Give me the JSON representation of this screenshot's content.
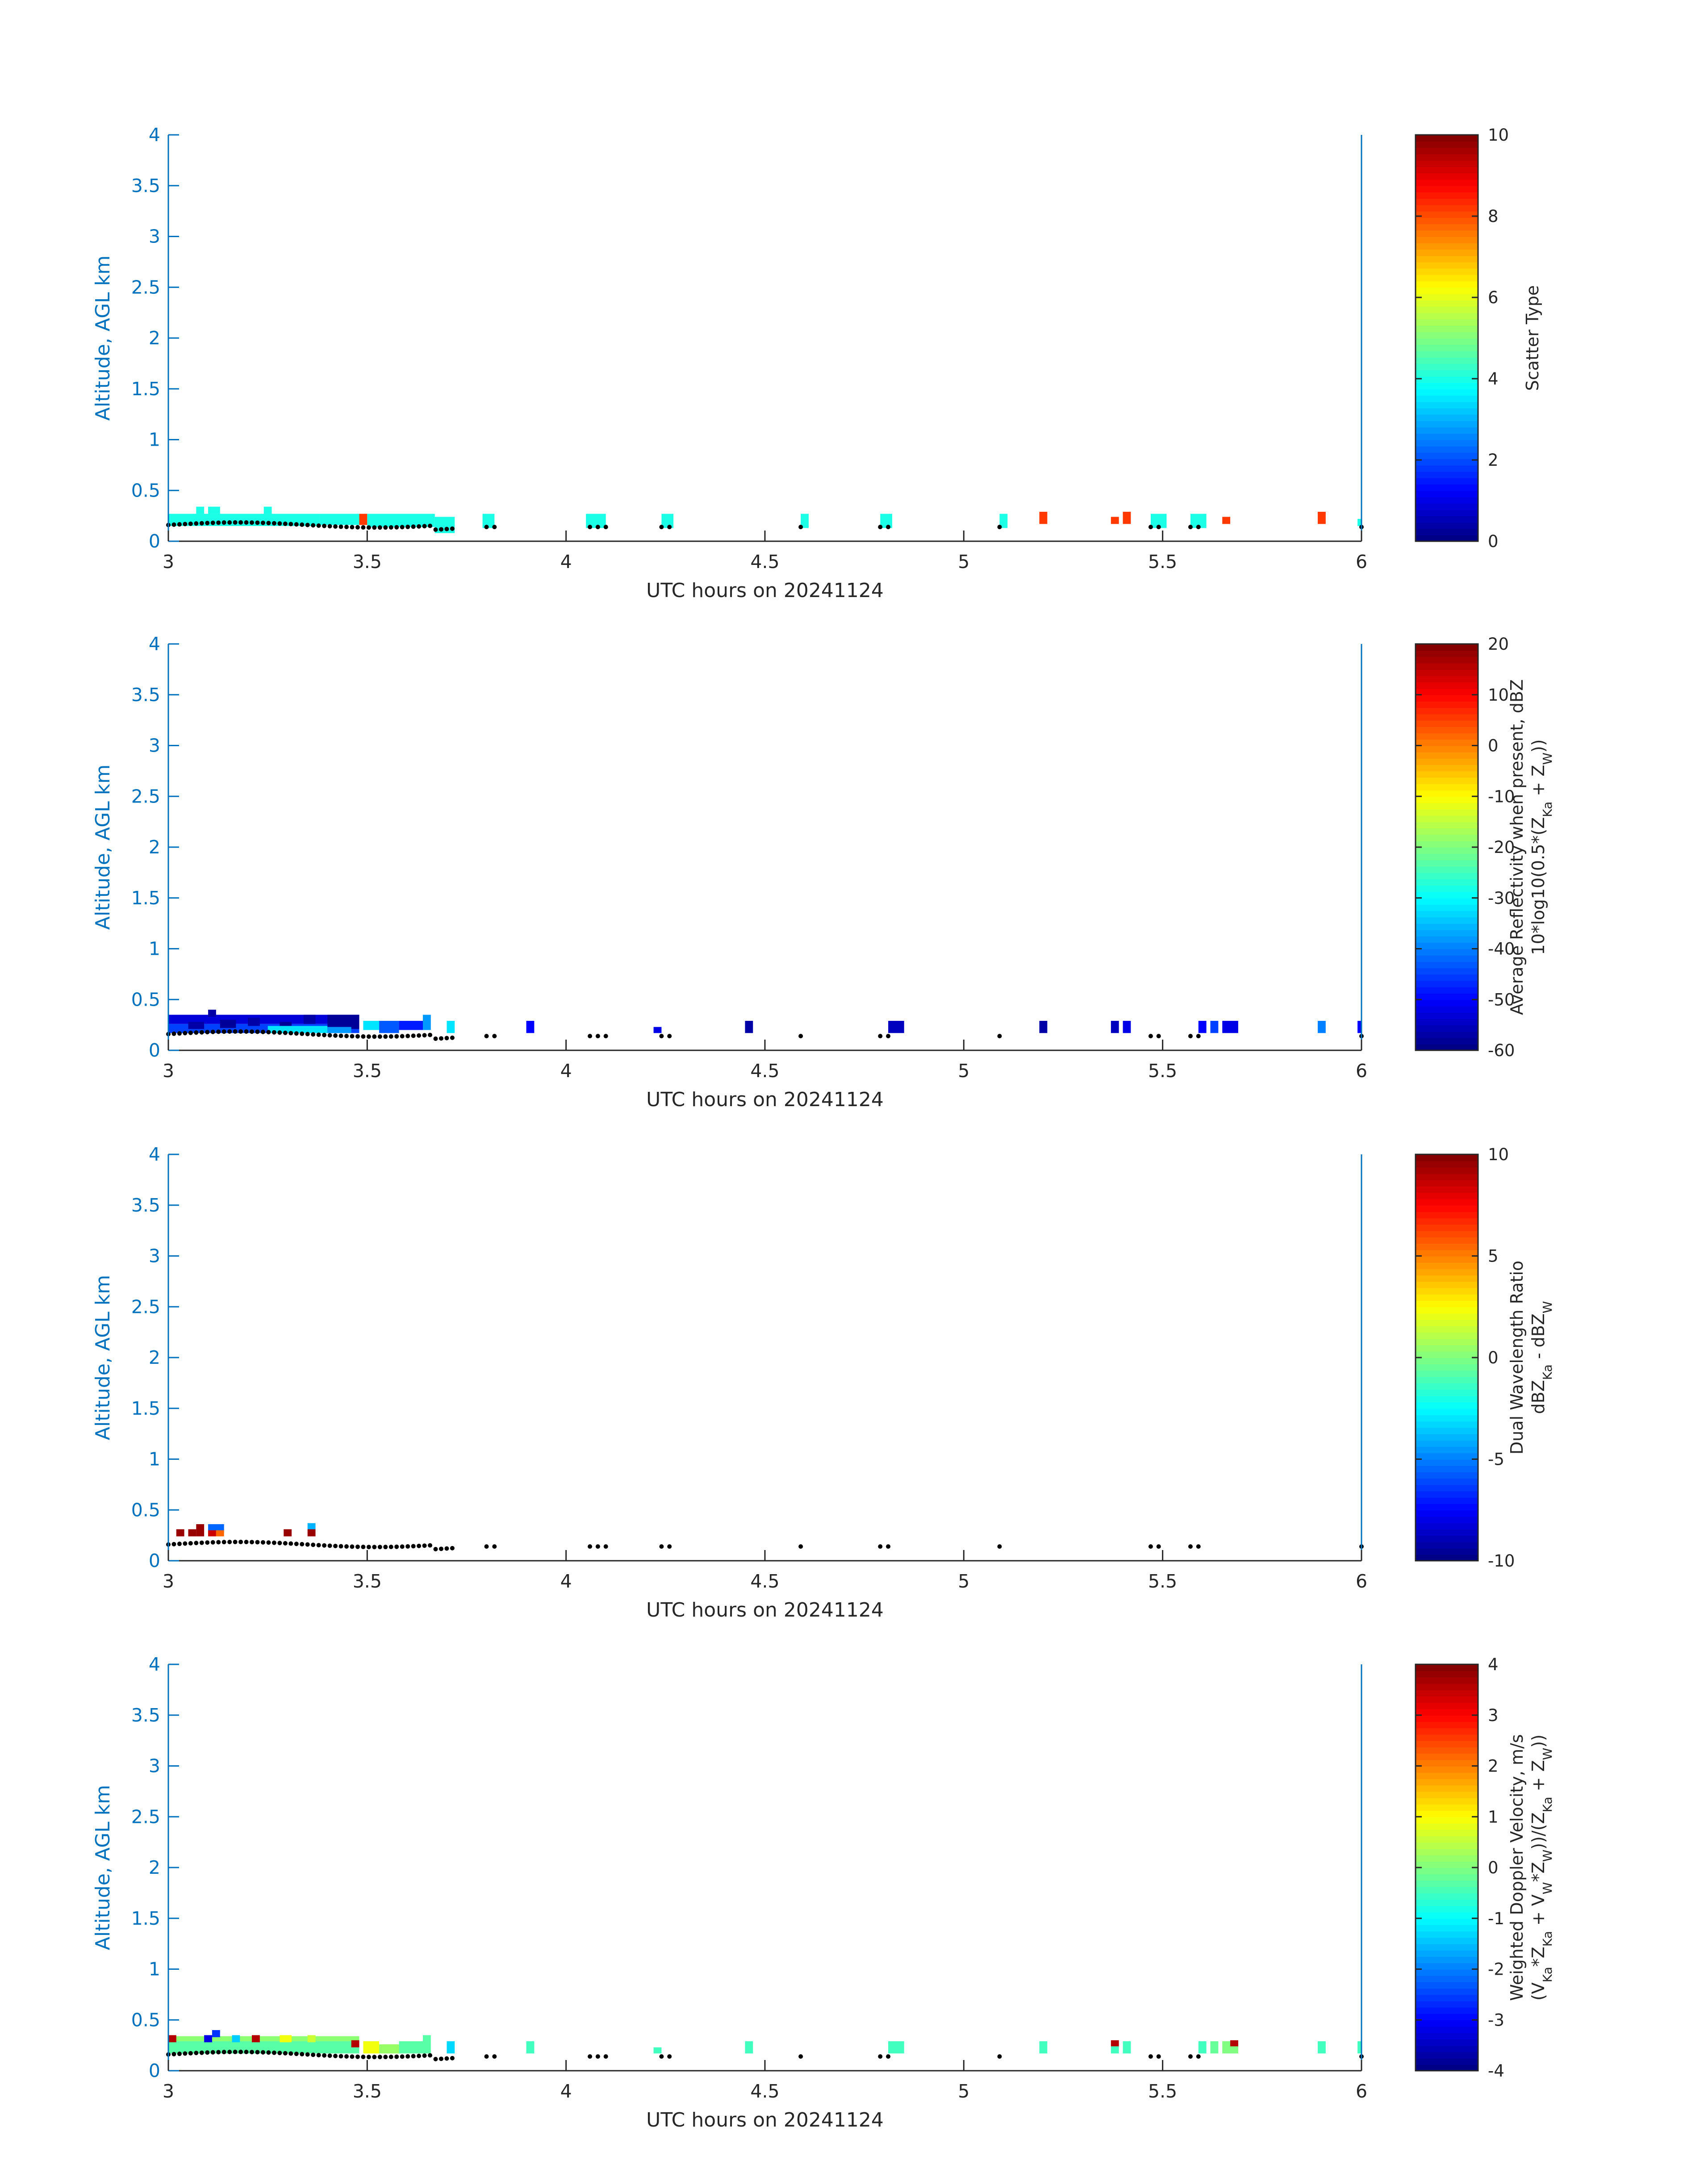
{
  "chart_data": [
    {
      "type": "heatmap",
      "xlabel": "UTC hours on 20241124",
      "ylabel": "Altitude, AGL km",
      "xlim": [
        3,
        6
      ],
      "ylim": [
        0,
        4
      ],
      "xticks": [
        "3",
        "3.5",
        "4",
        "4.5",
        "5",
        "5.5",
        "6"
      ],
      "yticks": [
        "0",
        "0.5",
        "1",
        "1.5",
        "2",
        "2.5",
        "3",
        "3.5",
        "4"
      ],
      "colorbar": {
        "label_lines": [
          "Scatter Type"
        ],
        "range": [
          0,
          10
        ],
        "ticks": [
          "0",
          "2",
          "4",
          "6",
          "8",
          "10"
        ]
      },
      "cells": [
        {
          "x0": 3.0,
          "x1": 3.38,
          "y0": 0.15,
          "y1": 0.27,
          "v": 4
        },
        {
          "x0": 3.38,
          "x1": 3.48,
          "y0": 0.16,
          "y1": 0.27,
          "v": 4
        },
        {
          "x0": 3.07,
          "x1": 3.09,
          "y0": 0.27,
          "y1": 0.34,
          "v": 4
        },
        {
          "x0": 3.1,
          "x1": 3.13,
          "y0": 0.27,
          "y1": 0.34,
          "v": 4
        },
        {
          "x0": 3.24,
          "x1": 3.26,
          "y0": 0.27,
          "y1": 0.34,
          "v": 4
        },
        {
          "x0": 3.48,
          "x1": 3.5,
          "y0": 0.16,
          "y1": 0.27,
          "v": 8.2
        },
        {
          "x0": 3.5,
          "x1": 3.67,
          "y0": 0.14,
          "y1": 0.27,
          "v": 4
        },
        {
          "x0": 3.67,
          "x1": 3.72,
          "y0": 0.08,
          "y1": 0.24,
          "v": 4
        },
        {
          "x0": 3.79,
          "x1": 3.82,
          "y0": 0.13,
          "y1": 0.27,
          "v": 4
        },
        {
          "x0": 4.05,
          "x1": 4.1,
          "y0": 0.13,
          "y1": 0.27,
          "v": 4
        },
        {
          "x0": 4.24,
          "x1": 4.27,
          "y0": 0.13,
          "y1": 0.27,
          "v": 4
        },
        {
          "x0": 4.59,
          "x1": 4.61,
          "y0": 0.13,
          "y1": 0.27,
          "v": 4
        },
        {
          "x0": 4.79,
          "x1": 4.82,
          "y0": 0.13,
          "y1": 0.27,
          "v": 4
        },
        {
          "x0": 5.09,
          "x1": 5.11,
          "y0": 0.13,
          "y1": 0.27,
          "v": 4
        },
        {
          "x0": 5.19,
          "x1": 5.21,
          "y0": 0.17,
          "y1": 0.29,
          "v": 8.2
        },
        {
          "x0": 5.37,
          "x1": 5.39,
          "y0": 0.17,
          "y1": 0.24,
          "v": 8.2
        },
        {
          "x0": 5.4,
          "x1": 5.42,
          "y0": 0.17,
          "y1": 0.29,
          "v": 8.2
        },
        {
          "x0": 5.47,
          "x1": 5.51,
          "y0": 0.13,
          "y1": 0.27,
          "v": 4
        },
        {
          "x0": 5.57,
          "x1": 5.61,
          "y0": 0.13,
          "y1": 0.27,
          "v": 4
        },
        {
          "x0": 5.65,
          "x1": 5.67,
          "y0": 0.17,
          "y1": 0.24,
          "v": 8.2
        },
        {
          "x0": 5.89,
          "x1": 5.91,
          "y0": 0.17,
          "y1": 0.29,
          "v": 8.2
        },
        {
          "x0": 5.99,
          "x1": 6.0,
          "y0": 0.15,
          "y1": 0.22,
          "v": 4
        }
      ]
    },
    {
      "type": "heatmap",
      "xlabel": "UTC hours on 20241124",
      "ylabel": "Altitude, AGL km",
      "xlim": [
        3,
        6
      ],
      "ylim": [
        0,
        4
      ],
      "xticks": [
        "3",
        "3.5",
        "4",
        "4.5",
        "5",
        "5.5",
        "6"
      ],
      "yticks": [
        "0",
        "0.5",
        "1",
        "1.5",
        "2",
        "2.5",
        "3",
        "3.5",
        "4"
      ],
      "colorbar": {
        "label_lines": [
          "Average Reflectivity when present, dBZ",
          "10*log10(0.5*(Z_Ka + Z_W))"
        ],
        "range": [
          -60,
          20
        ],
        "ticks": [
          "-60",
          "-50",
          "-40",
          "-30",
          "-20",
          "-10",
          "0",
          "10",
          "20"
        ]
      },
      "cells": [
        {
          "x0": 3.0,
          "x1": 3.48,
          "y0": 0.17,
          "y1": 0.26,
          "v": -45
        },
        {
          "x0": 3.0,
          "x1": 3.48,
          "y0": 0.26,
          "y1": 0.35,
          "v": -53
        },
        {
          "x0": 3.1,
          "x1": 3.12,
          "y0": 0.33,
          "y1": 0.4,
          "v": -57
        },
        {
          "x0": 3.05,
          "x1": 3.09,
          "y0": 0.21,
          "y1": 0.28,
          "v": -57
        },
        {
          "x0": 3.13,
          "x1": 3.17,
          "y0": 0.22,
          "y1": 0.3,
          "v": -58
        },
        {
          "x0": 3.2,
          "x1": 3.23,
          "y0": 0.24,
          "y1": 0.32,
          "v": -57
        },
        {
          "x0": 3.28,
          "x1": 3.31,
          "y0": 0.21,
          "y1": 0.28,
          "v": -58
        },
        {
          "x0": 3.34,
          "x1": 3.37,
          "y0": 0.26,
          "y1": 0.35,
          "v": -57
        },
        {
          "x0": 3.4,
          "x1": 3.48,
          "y0": 0.21,
          "y1": 0.35,
          "v": -58
        },
        {
          "x0": 3.25,
          "x1": 3.4,
          "y0": 0.17,
          "y1": 0.24,
          "v": -32
        },
        {
          "x0": 3.4,
          "x1": 3.46,
          "y0": 0.17,
          "y1": 0.23,
          "v": -38
        },
        {
          "x0": 3.49,
          "x1": 3.53,
          "y0": 0.2,
          "y1": 0.29,
          "v": -32
        },
        {
          "x0": 3.53,
          "x1": 3.58,
          "y0": 0.17,
          "y1": 0.29,
          "v": -43
        },
        {
          "x0": 3.58,
          "x1": 3.64,
          "y0": 0.2,
          "y1": 0.29,
          "v": -48
        },
        {
          "x0": 3.64,
          "x1": 3.66,
          "y0": 0.2,
          "y1": 0.35,
          "v": -38
        },
        {
          "x0": 3.7,
          "x1": 3.72,
          "y0": 0.17,
          "y1": 0.29,
          "v": -32
        },
        {
          "x0": 3.9,
          "x1": 3.92,
          "y0": 0.17,
          "y1": 0.29,
          "v": -50
        },
        {
          "x0": 4.22,
          "x1": 4.24,
          "y0": 0.17,
          "y1": 0.23,
          "v": -52
        },
        {
          "x0": 4.45,
          "x1": 4.47,
          "y0": 0.17,
          "y1": 0.29,
          "v": -57
        },
        {
          "x0": 4.81,
          "x1": 4.85,
          "y0": 0.17,
          "y1": 0.29,
          "v": -55
        },
        {
          "x0": 5.19,
          "x1": 5.21,
          "y0": 0.17,
          "y1": 0.29,
          "v": -57
        },
        {
          "x0": 5.37,
          "x1": 5.39,
          "y0": 0.17,
          "y1": 0.29,
          "v": -55
        },
        {
          "x0": 5.4,
          "x1": 5.42,
          "y0": 0.17,
          "y1": 0.29,
          "v": -52
        },
        {
          "x0": 5.59,
          "x1": 5.61,
          "y0": 0.17,
          "y1": 0.29,
          "v": -50
        },
        {
          "x0": 5.62,
          "x1": 5.64,
          "y0": 0.17,
          "y1": 0.29,
          "v": -45
        },
        {
          "x0": 5.65,
          "x1": 5.69,
          "y0": 0.17,
          "y1": 0.29,
          "v": -52
        },
        {
          "x0": 5.89,
          "x1": 5.91,
          "y0": 0.17,
          "y1": 0.29,
          "v": -40
        },
        {
          "x0": 5.99,
          "x1": 6.0,
          "y0": 0.17,
          "y1": 0.29,
          "v": -50
        }
      ]
    },
    {
      "type": "heatmap",
      "xlabel": "UTC hours on 20241124",
      "ylabel": "Altitude, AGL km",
      "xlim": [
        3,
        6
      ],
      "ylim": [
        0,
        4
      ],
      "xticks": [
        "3",
        "3.5",
        "4",
        "4.5",
        "5",
        "5.5",
        "6"
      ],
      "yticks": [
        "0",
        "0.5",
        "1",
        "1.5",
        "2",
        "2.5",
        "3",
        "3.5",
        "4"
      ],
      "colorbar": {
        "label_lines": [
          "Dual Wavelength Ratio",
          "dBZ_Ka - dBZ_W"
        ],
        "range": [
          -10,
          10
        ],
        "ticks": [
          "-10",
          "-5",
          "0",
          "5",
          "10"
        ]
      },
      "cells": [
        {
          "x0": 3.02,
          "x1": 3.04,
          "y0": 0.24,
          "y1": 0.31,
          "v": 9.5
        },
        {
          "x0": 3.05,
          "x1": 3.07,
          "y0": 0.24,
          "y1": 0.31,
          "v": 9.5
        },
        {
          "x0": 3.07,
          "x1": 3.09,
          "y0": 0.24,
          "y1": 0.36,
          "v": 9.5
        },
        {
          "x0": 3.1,
          "x1": 3.12,
          "y0": 0.24,
          "y1": 0.31,
          "v": 8.5
        },
        {
          "x0": 3.12,
          "x1": 3.14,
          "y0": 0.24,
          "y1": 0.31,
          "v": 5.5
        },
        {
          "x0": 3.1,
          "x1": 3.14,
          "y0": 0.3,
          "y1": 0.36,
          "v": -5.5
        },
        {
          "x0": 3.29,
          "x1": 3.31,
          "y0": 0.24,
          "y1": 0.31,
          "v": 9.5
        },
        {
          "x0": 3.35,
          "x1": 3.37,
          "y0": 0.24,
          "y1": 0.31,
          "v": 9.5
        },
        {
          "x0": 3.35,
          "x1": 3.37,
          "y0": 0.31,
          "y1": 0.37,
          "v": -4
        }
      ]
    },
    {
      "type": "heatmap",
      "xlabel": "UTC hours on 20241124",
      "ylabel": "Altitude, AGL km",
      "xlim": [
        3,
        6
      ],
      "ylim": [
        0,
        4
      ],
      "xticks": [
        "3",
        "3.5",
        "4",
        "4.5",
        "5",
        "5.5",
        "6"
      ],
      "yticks": [
        "0",
        "0.5",
        "1",
        "1.5",
        "2",
        "2.5",
        "3",
        "3.5",
        "4"
      ],
      "colorbar": {
        "label_lines": [
          "Weighted Doppler Velocity, m/s",
          "(V_Ka*Z_Ka + V_W*Z_W))/(Z_Ka + Z_W))"
        ],
        "range": [
          -4,
          4
        ],
        "ticks": [
          "-4",
          "-3",
          "-2",
          "-1",
          "0",
          "1",
          "2",
          "3",
          "4"
        ]
      },
      "cells": [
        {
          "x0": 3.0,
          "x1": 3.48,
          "y0": 0.17,
          "y1": 0.29,
          "v": -0.3
        },
        {
          "x0": 3.0,
          "x1": 3.48,
          "y0": 0.29,
          "y1": 0.34,
          "v": 0.1
        },
        {
          "x0": 3.0,
          "x1": 3.02,
          "y0": 0.28,
          "y1": 0.35,
          "v": 3.6
        },
        {
          "x0": 3.09,
          "x1": 3.11,
          "y0": 0.28,
          "y1": 0.35,
          "v": -3.2
        },
        {
          "x0": 3.11,
          "x1": 3.13,
          "y0": 0.33,
          "y1": 0.4,
          "v": -2.6
        },
        {
          "x0": 3.16,
          "x1": 3.18,
          "y0": 0.28,
          "y1": 0.35,
          "v": -1.4
        },
        {
          "x0": 3.21,
          "x1": 3.23,
          "y0": 0.28,
          "y1": 0.35,
          "v": 3.6
        },
        {
          "x0": 3.28,
          "x1": 3.31,
          "y0": 0.28,
          "y1": 0.35,
          "v": 0.9
        },
        {
          "x0": 3.35,
          "x1": 3.37,
          "y0": 0.28,
          "y1": 0.35,
          "v": 0.6
        },
        {
          "x0": 3.46,
          "x1": 3.48,
          "y0": 0.23,
          "y1": 0.3,
          "v": 3.6
        },
        {
          "x0": 3.49,
          "x1": 3.53,
          "y0": 0.17,
          "y1": 0.29,
          "v": 0.9
        },
        {
          "x0": 3.53,
          "x1": 3.58,
          "y0": 0.17,
          "y1": 0.26,
          "v": 0.2
        },
        {
          "x0": 3.58,
          "x1": 3.66,
          "y0": 0.17,
          "y1": 0.29,
          "v": -0.3
        },
        {
          "x0": 3.64,
          "x1": 3.66,
          "y0": 0.29,
          "y1": 0.35,
          "v": -0.3
        },
        {
          "x0": 3.7,
          "x1": 3.72,
          "y0": 0.17,
          "y1": 0.29,
          "v": -1.3
        },
        {
          "x0": 3.9,
          "x1": 3.92,
          "y0": 0.17,
          "y1": 0.29,
          "v": -0.5
        },
        {
          "x0": 4.22,
          "x1": 4.24,
          "y0": 0.17,
          "y1": 0.23,
          "v": -0.5
        },
        {
          "x0": 4.45,
          "x1": 4.47,
          "y0": 0.17,
          "y1": 0.29,
          "v": -0.5
        },
        {
          "x0": 4.81,
          "x1": 4.85,
          "y0": 0.17,
          "y1": 0.29,
          "v": -0.5
        },
        {
          "x0": 5.19,
          "x1": 5.21,
          "y0": 0.17,
          "y1": 0.29,
          "v": -0.5
        },
        {
          "x0": 5.37,
          "x1": 5.39,
          "y0": 0.17,
          "y1": 0.24,
          "v": -0.5
        },
        {
          "x0": 5.37,
          "x1": 5.39,
          "y0": 0.24,
          "y1": 0.3,
          "v": 3.6
        },
        {
          "x0": 5.4,
          "x1": 5.42,
          "y0": 0.17,
          "y1": 0.29,
          "v": -0.5
        },
        {
          "x0": 5.59,
          "x1": 5.61,
          "y0": 0.17,
          "y1": 0.29,
          "v": -0.5
        },
        {
          "x0": 5.62,
          "x1": 5.64,
          "y0": 0.17,
          "y1": 0.29,
          "v": -0.2
        },
        {
          "x0": 5.65,
          "x1": 5.69,
          "y0": 0.17,
          "y1": 0.29,
          "v": 0.0
        },
        {
          "x0": 5.67,
          "x1": 5.69,
          "y0": 0.24,
          "y1": 0.3,
          "v": 3.6
        },
        {
          "x0": 5.89,
          "x1": 5.91,
          "y0": 0.17,
          "y1": 0.29,
          "v": -0.5
        },
        {
          "x0": 5.99,
          "x1": 6.0,
          "y0": 0.17,
          "y1": 0.29,
          "v": -0.5
        }
      ]
    }
  ]
}
